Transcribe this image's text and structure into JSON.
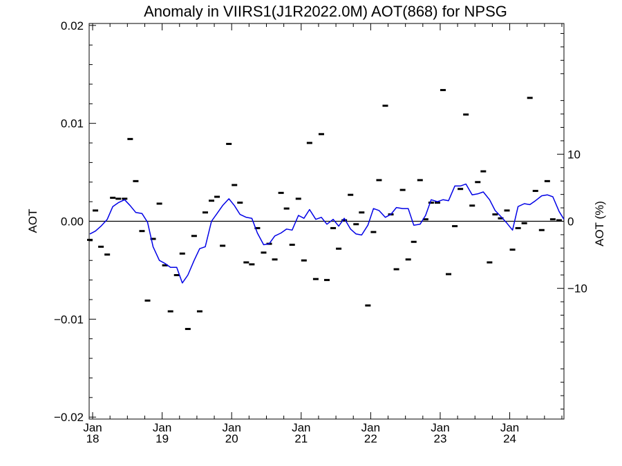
{
  "chart_data": {
    "type": "scatter",
    "title": "Anomaly in VIIRS1(J1R2022.0M) AOT(868) for NPSG",
    "ylabel": "AOT",
    "ylabel_right": "AOT (%)",
    "xlabel": "",
    "x_ticks": [
      {
        "x": 2018.0,
        "month": "Jan",
        "year": "18"
      },
      {
        "x": 2019.0,
        "month": "Jan",
        "year": "19"
      },
      {
        "x": 2020.0,
        "month": "Jan",
        "year": "20"
      },
      {
        "x": 2021.0,
        "month": "Jan",
        "year": "21"
      },
      {
        "x": 2022.0,
        "month": "Jan",
        "year": "22"
      },
      {
        "x": 2023.0,
        "month": "Jan",
        "year": "23"
      },
      {
        "x": 2024.0,
        "month": "Jan",
        "year": "24"
      }
    ],
    "xlim": [
      2017.95,
      2024.78
    ],
    "ylim": [
      -0.0202,
      0.0202
    ],
    "y_ticks": [
      -0.02,
      -0.01,
      0.0,
      0.01,
      0.02
    ],
    "y_tick_labels": [
      "−0.02",
      "−0.01",
      "0.00",
      "0.01",
      "0.02"
    ],
    "y2_ticks": [
      -10,
      0,
      10
    ],
    "y2_tick_labels": [
      "−10",
      "0",
      "10"
    ],
    "y2_ratio": 0.000685,
    "grid": false,
    "zero_line": true,
    "series": [
      {
        "type": "scatter",
        "marker": "dash",
        "color": "#000000",
        "x": [
          2017.96,
          2018.04,
          2018.12,
          2018.21,
          2018.29,
          2018.37,
          2018.46,
          2018.54,
          2018.62,
          2018.71,
          2018.79,
          2018.87,
          2018.96,
          2019.04,
          2019.12,
          2019.21,
          2019.29,
          2019.37,
          2019.46,
          2019.54,
          2019.62,
          2019.71,
          2019.79,
          2019.87,
          2019.96,
          2020.04,
          2020.12,
          2020.21,
          2020.29,
          2020.37,
          2020.46,
          2020.54,
          2020.62,
          2020.71,
          2020.79,
          2020.87,
          2020.96,
          2021.04,
          2021.12,
          2021.21,
          2021.29,
          2021.37,
          2021.46,
          2021.54,
          2021.62,
          2021.71,
          2021.79,
          2021.87,
          2021.96,
          2022.04,
          2022.12,
          2022.21,
          2022.29,
          2022.37,
          2022.46,
          2022.54,
          2022.62,
          2022.71,
          2022.79,
          2022.87,
          2022.96,
          2023.04,
          2023.12,
          2023.21,
          2023.29,
          2023.37,
          2023.46,
          2023.54,
          2023.62,
          2023.71,
          2023.79,
          2023.87,
          2023.96,
          2024.04,
          2024.12,
          2024.21,
          2024.29,
          2024.37,
          2024.46,
          2024.54,
          2024.62,
          2024.71
        ],
        "y": [
          -0.0019,
          0.0011,
          -0.0026,
          -0.0034,
          0.0024,
          0.0023,
          0.0023,
          0.0084,
          0.0041,
          -0.001,
          -0.0081,
          -0.0018,
          0.0018,
          -0.0045,
          -0.0092,
          -0.0055,
          -0.0033,
          -0.011,
          -0.0015,
          -0.0092,
          0.0009,
          0.0021,
          0.0025,
          -0.0025,
          0.0079,
          0.0037,
          0.0019,
          -0.0042,
          -0.0044,
          -0.0007,
          -0.0032,
          -0.0023,
          -0.0039,
          0.0029,
          0.0013,
          -0.0024,
          0.0023,
          -0.004,
          0.008,
          -0.0059,
          0.0089,
          -0.006,
          -0.0007,
          -0.0028,
          0.0001,
          0.0027,
          -0.0003,
          0.0009,
          -0.0086,
          -0.0011,
          0.0042,
          0.0118,
          0.0007,
          -0.0049,
          0.0032,
          -0.0039,
          -0.0021,
          0.0042,
          0.0002,
          0.0019,
          0.0019,
          0.0134,
          -0.0054,
          -0.0005,
          0.0033,
          0.0109,
          0.0016,
          0.004,
          0.0051,
          -0.0042,
          0.0007,
          0.0003,
          0.0011,
          -0.0029,
          -0.0007,
          -0.0002,
          0.0126,
          0.0031,
          -0.0009,
          0.0041,
          0.0002,
          0.0001
        ]
      },
      {
        "type": "line",
        "color": "#0000e6",
        "x": [
          2017.96,
          2018.04,
          2018.12,
          2018.21,
          2018.29,
          2018.37,
          2018.46,
          2018.54,
          2018.62,
          2018.71,
          2018.79,
          2018.87,
          2018.96,
          2019.04,
          2019.12,
          2019.21,
          2019.29,
          2019.37,
          2019.46,
          2019.54,
          2019.62,
          2019.71,
          2019.79,
          2019.87,
          2019.96,
          2020.04,
          2020.12,
          2020.21,
          2020.29,
          2020.37,
          2020.46,
          2020.54,
          2020.62,
          2020.71,
          2020.79,
          2020.87,
          2020.96,
          2021.04,
          2021.12,
          2021.21,
          2021.29,
          2021.37,
          2021.46,
          2021.54,
          2021.62,
          2021.71,
          2021.79,
          2021.87,
          2021.96,
          2022.04,
          2022.12,
          2022.21,
          2022.29,
          2022.37,
          2022.46,
          2022.54,
          2022.62,
          2022.71,
          2022.79,
          2022.87,
          2022.96,
          2023.04,
          2023.12,
          2023.21,
          2023.29,
          2023.37,
          2023.46,
          2023.54,
          2023.62,
          2023.71,
          2023.79,
          2023.87,
          2023.96,
          2024.04,
          2024.12,
          2024.21,
          2024.29,
          2024.37,
          2024.46,
          2024.54,
          2024.62,
          2024.71,
          2024.78
        ],
        "y": [
          -0.0013,
          -0.001,
          -0.0005,
          0.0002,
          0.0015,
          0.0019,
          0.0022,
          0.0016,
          0.0009,
          0.0008,
          -0.0001,
          -0.0026,
          -0.004,
          -0.0043,
          -0.0047,
          -0.0047,
          -0.0063,
          -0.0055,
          -0.004,
          -0.0028,
          -0.0026,
          0.0,
          0.0008,
          0.0016,
          0.0023,
          0.0016,
          0.0007,
          0.0004,
          0.0003,
          -0.0012,
          -0.0024,
          -0.0023,
          -0.0015,
          -0.0012,
          -0.0008,
          -0.0009,
          0.0006,
          0.0003,
          0.0012,
          0.0002,
          0.0004,
          -0.0003,
          0.0002,
          -0.0005,
          0.0003,
          -0.0008,
          -0.0013,
          -0.0014,
          -0.0004,
          0.0013,
          0.0011,
          0.0004,
          0.0007,
          0.0014,
          0.0013,
          0.0013,
          -0.0004,
          -0.0003,
          0.0006,
          0.0022,
          0.002,
          0.0022,
          0.0021,
          0.0036,
          0.0036,
          0.0038,
          0.0027,
          0.0028,
          0.003,
          0.0022,
          0.0011,
          0.0005,
          -0.0002,
          -0.0009,
          0.0015,
          0.0018,
          0.0017,
          0.0021,
          0.0026,
          0.0027,
          0.0025,
          0.001,
          0.0002
        ]
      }
    ]
  }
}
